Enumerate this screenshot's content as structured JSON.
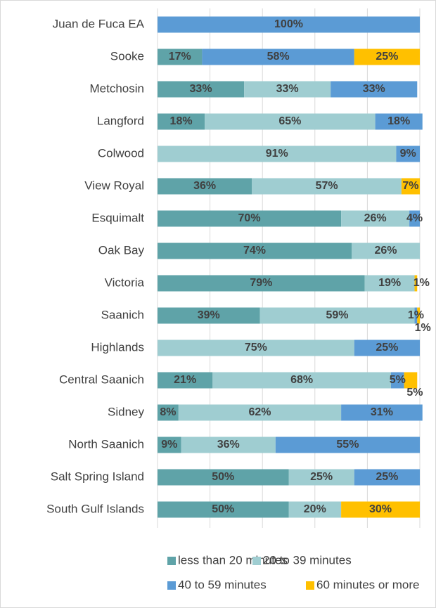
{
  "chart_data": {
    "type": "stacked-bar-horizontal",
    "categories": [
      "Juan de Fuca EA",
      "Sooke",
      "Metchosin",
      "Langford",
      "Colwood",
      "View Royal",
      "Esquimalt",
      "Oak Bay",
      "Victoria",
      "Saanich",
      "Highlands",
      "Central Saanich",
      "Sidney",
      "North Saanich",
      "Salt Spring Island",
      "South Gulf Islands"
    ],
    "series": [
      {
        "name": "less than 20 minutes",
        "color": "#5fa3a8",
        "values": [
          0,
          17,
          33,
          18,
          0,
          36,
          70,
          74,
          79,
          39,
          0,
          21,
          8,
          9,
          50,
          50
        ],
        "value_labels": [
          null,
          "17%",
          "33%",
          "18%",
          null,
          "36%",
          "70%",
          "74%",
          "79%",
          "39%",
          null,
          "21%",
          "8%",
          "9%",
          "50%",
          "50%"
        ]
      },
      {
        "name": "20 to 39 minutes",
        "color": "#9fcdd1",
        "values": [
          0,
          0,
          33,
          65,
          91,
          57,
          26,
          26,
          19,
          59,
          75,
          68,
          62,
          36,
          25,
          20
        ],
        "value_labels": [
          null,
          null,
          "33%",
          "65%",
          "91%",
          "57%",
          "26%",
          "26%",
          "19%",
          "59%",
          "75%",
          "68%",
          "62%",
          "36%",
          "25%",
          "20%"
        ]
      },
      {
        "name": "40 to 59 minutes",
        "color": "#5b9bd5",
        "values": [
          100,
          58,
          33,
          18,
          9,
          0,
          4,
          0,
          0,
          1,
          25,
          5,
          31,
          55,
          25,
          0
        ],
        "value_labels": [
          "100%",
          "58%",
          "33%",
          "18%",
          "9%",
          null,
          "4%",
          null,
          null,
          "1%",
          "25%",
          "5%",
          "31%",
          "55%",
          "25%",
          null
        ]
      },
      {
        "name": "60 minutes or more",
        "color": "#ffc000",
        "values": [
          0,
          25,
          0,
          0,
          0,
          7,
          0,
          0,
          1,
          1,
          0,
          5,
          0,
          0,
          0,
          30
        ],
        "value_labels": [
          null,
          "25%",
          null,
          null,
          null,
          "7%",
          null,
          null,
          "1%",
          "1%",
          null,
          "5%",
          null,
          null,
          null,
          "30%"
        ]
      }
    ],
    "xlim": [
      0,
      100
    ],
    "xticks": [
      0,
      20,
      40,
      60,
      80,
      100
    ],
    "grid": true,
    "legend": "bottom"
  }
}
